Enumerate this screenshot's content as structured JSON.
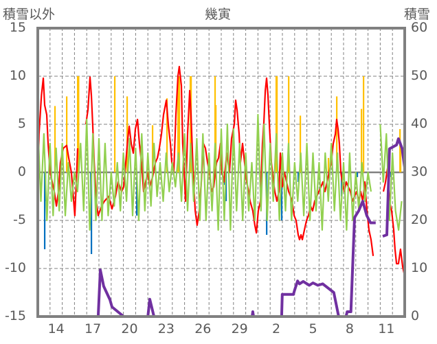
{
  "chart_data": {
    "type": "line",
    "title": "幾寅",
    "ylabel_left": "積雪以外",
    "ylabel_right": "積雪",
    "ylim_left": [
      -15,
      15
    ],
    "ylim_right": [
      0,
      60
    ],
    "yticks_left": [
      "15",
      "10",
      "5",
      "0",
      "-5",
      "-10",
      "-15"
    ],
    "yticks_left_values": [
      15,
      10,
      5,
      0,
      -5,
      -10,
      -15
    ],
    "yticks_right": [
      "60",
      "50",
      "40",
      "30",
      "20",
      "10",
      "0"
    ],
    "yticks_right_values": [
      60,
      50,
      40,
      30,
      20,
      10,
      0
    ],
    "xlim_days": [
      0,
      30
    ],
    "xticks": [
      "14",
      "17",
      "20",
      "23",
      "26",
      "29",
      "2",
      "5",
      "8",
      "11"
    ],
    "xticks_day_index": [
      1,
      4,
      7,
      10,
      13,
      16,
      19,
      22,
      25,
      28
    ],
    "grid": true,
    "colors": {
      "red": "#FF0000",
      "green": "#92D050",
      "blue": "#0070C0",
      "orange": "#FFC000",
      "purple": "#7030A0",
      "axis": "#808080"
    },
    "series": [
      {
        "name": "red-series",
        "axis": "left",
        "color": "#FF0000",
        "points": [
          [
            0,
            -1.2
          ],
          [
            0.1,
            4
          ],
          [
            0.3,
            8
          ],
          [
            0.45,
            9.8
          ],
          [
            0.56,
            7
          ],
          [
            0.73,
            6
          ],
          [
            0.84,
            3
          ],
          [
            1.01,
            0
          ],
          [
            1.18,
            -1
          ],
          [
            1.35,
            -2
          ],
          [
            1.52,
            -3.5
          ],
          [
            1.69,
            -2
          ],
          [
            1.85,
            1
          ],
          [
            2.08,
            2.5
          ],
          [
            2.36,
            2.8
          ],
          [
            2.53,
            1.5
          ],
          [
            2.75,
            0
          ],
          [
            2.87,
            -2
          ],
          [
            3.03,
            -4.5
          ],
          [
            3.15,
            -1
          ],
          [
            3.26,
            2.5
          ],
          null,
          [
            3.93,
            5
          ],
          [
            4.1,
            6.5
          ],
          [
            4.27,
            9.9
          ],
          [
            4.38,
            8
          ],
          [
            4.49,
            5
          ],
          [
            4.61,
            1
          ],
          [
            4.78,
            -3
          ],
          [
            4.94,
            -4.5
          ],
          [
            5.22,
            -3.5
          ],
          [
            5.45,
            -3
          ],
          [
            5.79,
            -2.5
          ],
          [
            6.07,
            -3.8
          ],
          [
            6.35,
            -2.5
          ],
          [
            6.57,
            -1
          ],
          [
            6.85,
            -2
          ],
          [
            7.02,
            -1.5
          ],
          [
            7.19,
            1
          ],
          [
            7.36,
            3.5
          ],
          [
            7.47,
            4.8
          ],
          [
            7.64,
            3
          ],
          [
            7.81,
            2
          ],
          [
            7.98,
            4.5
          ],
          [
            8.15,
            5.5
          ],
          [
            8.31,
            3
          ],
          [
            8.48,
            1
          ],
          [
            8.65,
            -2
          ],
          [
            8.82,
            -1
          ],
          [
            8.99,
            0
          ],
          [
            9.16,
            -1.5
          ],
          [
            9.38,
            -0.5
          ],
          [
            9.61,
            1
          ],
          [
            9.78,
            1.5
          ],
          [
            9.94,
            2.5
          ],
          [
            10.11,
            4
          ],
          [
            10.28,
            6
          ],
          [
            10.51,
            7.5
          ],
          [
            10.67,
            5
          ],
          [
            10.84,
            3
          ],
          [
            10.96,
            1
          ],
          [
            11.12,
            0
          ],
          [
            11.29,
            6
          ],
          [
            11.46,
            10
          ],
          [
            11.57,
            11
          ],
          [
            11.74,
            9
          ],
          [
            11.85,
            3
          ],
          [
            11.97,
            0
          ],
          [
            12.08,
            -3
          ],
          [
            12.25,
            4
          ],
          [
            12.42,
            8.5
          ],
          [
            12.53,
            6
          ],
          [
            12.7,
            0
          ],
          [
            12.87,
            -4
          ],
          [
            13.03,
            -5.5
          ],
          [
            13.2,
            -4
          ],
          [
            13.37,
            -1
          ],
          [
            13.54,
            3
          ],
          [
            13.71,
            2.5
          ],
          [
            13.88,
            1
          ],
          [
            14.04,
            0
          ],
          [
            14.21,
            -2
          ],
          [
            14.38,
            -1.5
          ],
          [
            14.61,
            1
          ],
          [
            14.78,
            1.5
          ],
          [
            14.94,
            3
          ],
          [
            15.06,
            0
          ],
          [
            15.22,
            -1
          ],
          [
            15.45,
            2
          ],
          [
            15.67,
            0
          ],
          [
            15.84,
            3.5
          ],
          [
            16.07,
            5
          ],
          [
            16.18,
            7.5
          ],
          [
            16.29,
            6.5
          ],
          [
            16.46,
            4
          ],
          [
            16.57,
            1
          ],
          [
            16.74,
            3
          ],
          [
            16.91,
            1
          ],
          [
            17.08,
            -1
          ],
          [
            17.25,
            -2
          ],
          [
            17.36,
            -3
          ],
          [
            17.58,
            -4
          ],
          [
            17.75,
            -5.5
          ],
          [
            17.87,
            -6.3
          ],
          [
            18.03,
            -4
          ],
          [
            18.2,
            -3
          ],
          [
            18.37,
            3
          ],
          [
            18.48,
            5
          ],
          [
            18.6,
            8.5
          ],
          [
            18.71,
            9.8
          ],
          [
            18.82,
            8
          ],
          [
            18.93,
            5
          ],
          [
            19.1,
            1
          ],
          [
            19.27,
            -1
          ],
          [
            19.38,
            -2
          ],
          [
            19.55,
            -3
          ],
          [
            19.72,
            -2
          ],
          [
            19.83,
            2
          ],
          [
            20.0,
            -1.5
          ],
          [
            20.17,
            0
          ],
          [
            20.34,
            -1
          ],
          [
            20.51,
            -2
          ],
          [
            20.67,
            -2.5
          ],
          [
            20.79,
            -3
          ],
          [
            20.96,
            -4.5
          ],
          [
            21.12,
            -5
          ],
          [
            21.29,
            -6.5
          ],
          [
            21.4,
            -7
          ],
          [
            21.52,
            -6.5
          ],
          [
            21.63,
            -7
          ],
          [
            21.8,
            -6
          ],
          [
            21.97,
            -5
          ],
          [
            22.13,
            -4.5
          ],
          [
            22.3,
            -3.5
          ],
          [
            22.47,
            -4
          ],
          [
            22.64,
            -3
          ],
          [
            22.81,
            -2.5
          ],
          [
            22.98,
            -2
          ],
          [
            23.15,
            -1.5
          ],
          [
            23.31,
            -1
          ],
          [
            23.48,
            -2
          ],
          [
            23.65,
            -1
          ],
          [
            23.82,
            0
          ],
          [
            23.99,
            1
          ],
          [
            24.16,
            3
          ],
          [
            24.33,
            4
          ],
          [
            24.44,
            5.5
          ],
          [
            24.55,
            4.5
          ],
          [
            24.66,
            3
          ],
          [
            24.78,
            0
          ],
          [
            24.89,
            -1
          ],
          [
            25.06,
            -2
          ],
          [
            25.22,
            -1
          ],
          [
            25.39,
            -1.5
          ],
          [
            25.56,
            -2
          ],
          [
            25.73,
            -3
          ],
          [
            25.9,
            -2.5
          ],
          [
            26.07,
            -2
          ],
          [
            26.24,
            -3
          ],
          [
            26.4,
            -2
          ],
          [
            26.57,
            -3
          ],
          [
            26.74,
            -1
          ],
          [
            26.91,
            -4
          ],
          [
            27.08,
            -6
          ],
          [
            27.25,
            -7
          ],
          [
            27.42,
            -8.7
          ],
          null,
          [
            28.26,
            -2
          ],
          [
            28.43,
            -1
          ],
          [
            28.6,
            0.5
          ],
          [
            28.76,
            -3
          ],
          [
            28.93,
            -4
          ],
          [
            29.1,
            -6
          ],
          [
            29.21,
            -8
          ],
          [
            29.33,
            -9.5
          ],
          [
            29.49,
            -9.5
          ],
          [
            29.66,
            -8
          ],
          [
            29.83,
            -9.8
          ],
          [
            29.95,
            -10.5
          ],
          [
            30,
            -10
          ]
        ]
      },
      {
        "name": "green-series",
        "axis": "left",
        "color": "#92D050",
        "start_day": 0,
        "step_day": 0.25,
        "values": [
          5,
          -3,
          4,
          -5,
          3,
          -4.5,
          2.5,
          -4,
          3,
          -4.5,
          1,
          -3,
          0,
          -2,
          3,
          -4,
          5.5,
          -6,
          4,
          -5,
          3.5,
          -5,
          3,
          -4.5,
          0,
          -3.5,
          1,
          -4,
          2,
          -3,
          3.5,
          -4.5,
          2.5,
          -5,
          4,
          -4,
          2,
          -3.5,
          3,
          -2.5,
          1,
          -3,
          2,
          -2,
          1,
          -1.5,
          2,
          -3,
          4,
          -4,
          3,
          -3,
          3.5,
          -5,
          4,
          -5,
          2,
          -4,
          3,
          -6,
          4.5,
          -5,
          5,
          -6,
          4.5,
          -4,
          3,
          -5,
          2,
          -4,
          1,
          -5,
          6,
          -4,
          5,
          -5,
          3,
          -3,
          4,
          -5,
          2,
          -4,
          3,
          -5,
          1,
          -3,
          2,
          -4.5,
          3,
          -5,
          2,
          -4,
          1,
          -6,
          2,
          -3,
          3,
          -4,
          2,
          -5,
          1,
          -6,
          2,
          -5,
          0,
          -4,
          1,
          -3,
          0,
          -2,
          null,
          null,
          5,
          -1,
          4,
          -5,
          2,
          -4,
          -6,
          -3
        ]
      },
      {
        "name": "purple-series",
        "axis": "right",
        "color": "#7030A0",
        "points": [
          [
            0,
            0
          ],
          [
            3.4,
            0
          ],
          null,
          [
            4,
            0
          ],
          [
            4.94,
            0
          ],
          [
            5.11,
            9.7
          ],
          [
            5.39,
            6.3
          ],
          [
            5.9,
            3.5
          ],
          [
            6.07,
            2
          ],
          [
            7.02,
            0
          ],
          [
            9.0,
            0
          ],
          [
            9.16,
            3.6
          ],
          [
            9.5,
            0
          ],
          [
            17.53,
            0
          ],
          [
            17.58,
            1
          ],
          [
            17.64,
            0
          ],
          [
            19.94,
            0
          ],
          [
            19.99,
            4.6
          ],
          [
            20.9,
            4.6
          ],
          [
            21.0,
            5.5
          ],
          [
            21.24,
            7.4
          ],
          [
            21.4,
            6.8
          ],
          [
            21.7,
            7.3
          ],
          [
            22.2,
            6.5
          ],
          [
            22.5,
            7
          ],
          [
            22.9,
            6.5
          ],
          [
            23.3,
            6.8
          ],
          [
            24.2,
            5
          ],
          [
            24.6,
            0
          ],
          [
            25.2,
            0
          ],
          [
            25.3,
            1
          ],
          [
            25.6,
            1
          ],
          [
            25.9,
            20.6
          ],
          [
            26.24,
            22
          ],
          [
            26.57,
            24
          ],
          [
            26.9,
            21
          ],
          [
            27.2,
            19.5
          ],
          [
            27.63,
            19.5
          ],
          null,
          [
            28.2,
            16.7
          ],
          [
            28.54,
            17
          ],
          [
            28.7,
            30
          ],
          [
            28.75,
            34.9
          ],
          [
            29.33,
            35.7
          ],
          [
            29.49,
            37
          ],
          [
            29.78,
            35
          ],
          [
            30,
            31
          ]
        ]
      }
    ],
    "bars": [
      {
        "name": "blue-bars",
        "axis": "left",
        "color": "#0070C0",
        "points": [
          [
            0.56,
            -8
          ],
          [
            0.62,
            -3
          ],
          [
            4.33,
            -2.5
          ],
          [
            4.38,
            -8.5
          ],
          [
            8.09,
            -4.5
          ],
          [
            15.28,
            -1.3
          ],
          [
            15.39,
            -3
          ],
          [
            18.71,
            -6.5
          ],
          [
            19.94,
            -5
          ],
          [
            21.29,
            -1
          ],
          [
            24.83,
            -2.5
          ],
          [
            26.12,
            -0.5
          ],
          [
            28.88,
            -0.5
          ]
        ]
      },
      {
        "name": "orange-bars",
        "axis": "left",
        "color": "#FFC000",
        "points": [
          [
            1.4,
            6.9
          ],
          [
            2.36,
            7.9
          ],
          [
            3.26,
            10
          ],
          [
            3.33,
            10
          ],
          [
            6.29,
            10
          ],
          [
            7.3,
            7.9
          ],
          [
            8.54,
            1.1
          ],
          [
            9.38,
            4.9
          ],
          [
            10.56,
            7.7
          ],
          [
            11.46,
            10
          ],
          [
            11.52,
            10
          ],
          [
            11.57,
            10
          ],
          [
            12.47,
            10
          ],
          [
            12.53,
            10
          ],
          [
            14.49,
            10
          ],
          [
            14.55,
            7
          ],
          [
            19.49,
            10
          ],
          [
            19.55,
            10
          ],
          [
            20.51,
            10
          ],
          [
            21.46,
            5.9
          ],
          [
            23.76,
            1.5
          ],
          [
            24.44,
            7.9
          ],
          [
            26.46,
            6.6
          ],
          [
            26.63,
            10
          ],
          [
            29.61,
            4.5
          ],
          [
            29.66,
            2.5
          ]
        ]
      }
    ]
  }
}
